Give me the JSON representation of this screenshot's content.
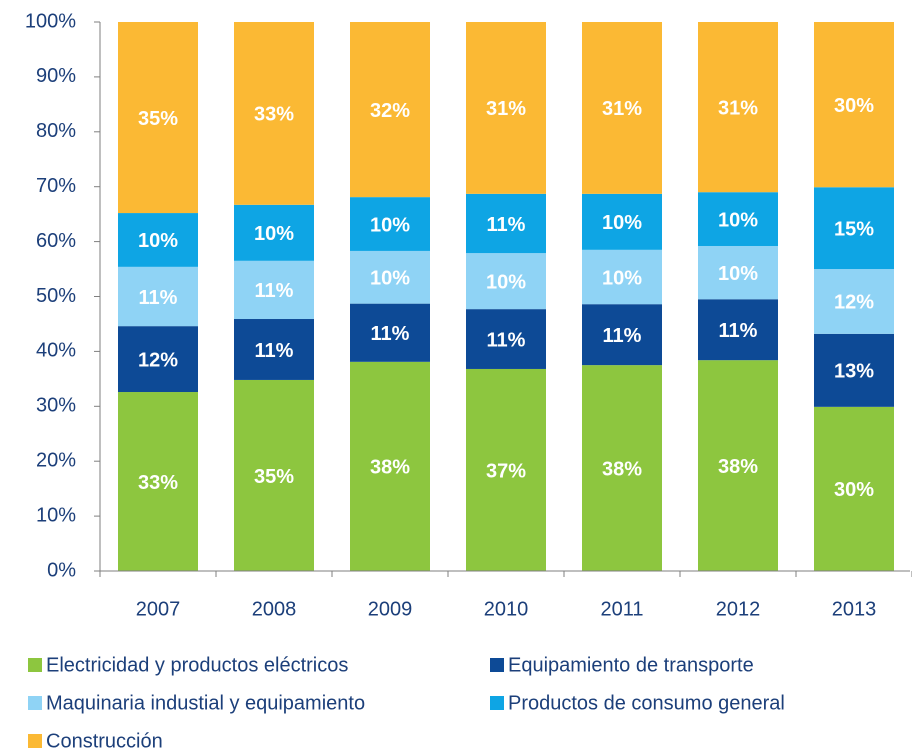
{
  "chart_data": {
    "type": "stacked_bar",
    "categories": [
      "2007",
      "2008",
      "2009",
      "2010",
      "2011",
      "2012",
      "2013"
    ],
    "series": [
      {
        "name": "Electricidad y productos eléctricos",
        "color": "#8dc63f",
        "values": [
          32.6,
          34.8,
          38.1,
          36.8,
          37.5,
          38.4,
          29.9
        ],
        "value_labels": [
          "33%",
          "35%",
          "38%",
          "37%",
          "38%",
          "38%",
          "30%"
        ]
      },
      {
        "name": "Equipamiento de transporte",
        "color": "#0d4a96",
        "values": [
          12.0,
          11.1,
          10.6,
          10.9,
          11.1,
          11.1,
          13.3
        ],
        "value_labels": [
          "12%",
          "11%",
          "11%",
          "11%",
          "11%",
          "11%",
          "13%"
        ]
      },
      {
        "name": "Maquinaria industial y equipamiento",
        "color": "#8fd3f5",
        "values": [
          10.8,
          10.6,
          9.6,
          10.2,
          9.9,
          9.7,
          11.8
        ],
        "value_labels": [
          "11%",
          "11%",
          "10%",
          "10%",
          "10%",
          "10%",
          "12%"
        ]
      },
      {
        "name": "Productos de consumo general",
        "color": "#0ea5e4",
        "values": [
          9.8,
          10.2,
          9.8,
          10.8,
          10.2,
          9.8,
          14.9
        ],
        "value_labels": [
          "10%",
          "10%",
          "10%",
          "11%",
          "10%",
          "10%",
          "15%"
        ]
      },
      {
        "name": "Construcción",
        "color": "#fbb934",
        "values": [
          34.8,
          33.3,
          31.9,
          31.3,
          31.3,
          31.0,
          30.1
        ],
        "value_labels": [
          "35%",
          "33%",
          "32%",
          "31%",
          "31%",
          "31%",
          "30%"
        ]
      }
    ],
    "ylim": [
      0,
      100
    ],
    "yticks": [
      {
        "value": 0,
        "label": "0%"
      },
      {
        "value": 10,
        "label": "10%"
      },
      {
        "value": 20,
        "label": "20%"
      },
      {
        "value": 30,
        "label": "30%"
      },
      {
        "value": 40,
        "label": "40%"
      },
      {
        "value": 50,
        "label": "50%"
      },
      {
        "value": 60,
        "label": "60%"
      },
      {
        "value": 70,
        "label": "70%"
      },
      {
        "value": 80,
        "label": "80%"
      },
      {
        "value": 90,
        "label": "90%"
      },
      {
        "value": 100,
        "label": "100%"
      }
    ]
  }
}
